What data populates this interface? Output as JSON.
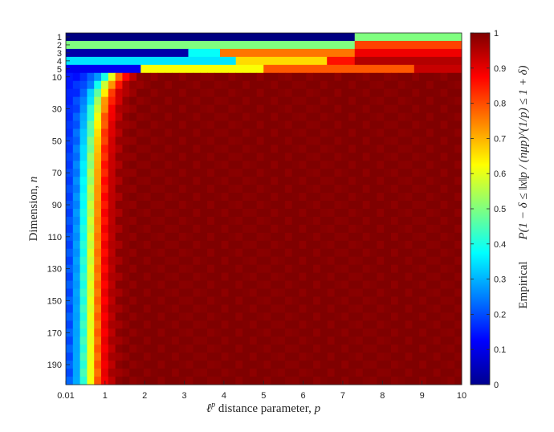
{
  "chart_data": {
    "type": "heatmap",
    "title": "",
    "xlabel_prefix": "ℓ",
    "xlabel_sup": "p",
    "xlabel_rest": " distance parameter, ",
    "xlabel_var": "p",
    "ylabel_text": "Dimension, ",
    "ylabel_var": "n",
    "x_ticks": [
      {
        "label": "0.01",
        "value": 0.01
      },
      {
        "label": "1",
        "value": 1
      },
      {
        "label": "2",
        "value": 2
      },
      {
        "label": "3",
        "value": 3
      },
      {
        "label": "4",
        "value": 4
      },
      {
        "label": "5",
        "value": 5
      },
      {
        "label": "6",
        "value": 6
      },
      {
        "label": "7",
        "value": 7
      },
      {
        "label": "8",
        "value": 8
      },
      {
        "label": "9",
        "value": 9
      },
      {
        "label": "10",
        "value": 10
      }
    ],
    "y_ticks": [
      {
        "label": "1",
        "row": 0
      },
      {
        "label": "2",
        "row": 1
      },
      {
        "label": "3",
        "row": 2
      },
      {
        "label": "4",
        "row": 3
      },
      {
        "label": "5",
        "row": 4
      },
      {
        "label": "10",
        "row": 5
      },
      {
        "label": "30",
        "row": 9
      },
      {
        "label": "50",
        "row": 13
      },
      {
        "label": "70",
        "row": 17
      },
      {
        "label": "90",
        "row": 21
      },
      {
        "label": "110",
        "row": 25
      },
      {
        "label": "130",
        "row": 29
      },
      {
        "label": "150",
        "row": 33
      },
      {
        "label": "170",
        "row": 37
      },
      {
        "label": "190",
        "row": 41
      }
    ],
    "x_range": [
      0.01,
      10
    ],
    "row_count": 44,
    "column_count": 56,
    "clim": [
      0,
      1
    ],
    "colormap": "jet",
    "colorbar": {
      "ticks": [
        "0",
        "0.1",
        "0.2",
        "0.3",
        "0.4",
        "0.5",
        "0.6",
        "0.7",
        "0.8",
        "0.9",
        "1"
      ],
      "label_prefix": "Empirical ",
      "label_formula": "P(1 − δ ≤ ‖x‖p / (nμp)^(1/p) ≤ 1 + δ)"
    },
    "rows_description": "Rows 1-5 are n = 1..5, remaining rows n = 10..200 in steps of 5",
    "low_n_rows": [
      {
        "n": 1,
        "segments": [
          {
            "p_from": 0.01,
            "p_to": 7.3,
            "value": 0.0
          },
          {
            "p_from": 7.3,
            "p_to": 10,
            "value": 0.5
          }
        ]
      },
      {
        "n": 2,
        "segments": [
          {
            "p_from": 0.01,
            "p_to": 7.3,
            "value": 0.5
          },
          {
            "p_from": 7.3,
            "p_to": 10,
            "value": 0.81
          }
        ]
      },
      {
        "n": 3,
        "segments": [
          {
            "p_from": 0.01,
            "p_to": 3.1,
            "value": 0.04
          },
          {
            "p_from": 3.1,
            "p_to": 3.9,
            "value": 0.38
          },
          {
            "p_from": 3.9,
            "p_to": 7.3,
            "value": 0.76
          },
          {
            "p_from": 7.3,
            "p_to": 10,
            "value": 0.89
          }
        ]
      },
      {
        "n": 4,
        "segments": [
          {
            "p_from": 0.01,
            "p_to": 4.3,
            "value": 0.35
          },
          {
            "p_from": 4.3,
            "p_to": 6.6,
            "value": 0.66
          },
          {
            "p_from": 6.6,
            "p_to": 7.3,
            "value": 0.86
          },
          {
            "p_from": 7.3,
            "p_to": 10,
            "value": 0.95
          }
        ]
      },
      {
        "n": 5,
        "segments": [
          {
            "p_from": 0.01,
            "p_to": 1.9,
            "value": 0.11
          },
          {
            "p_from": 1.9,
            "p_to": 5.0,
            "value": 0.62
          },
          {
            "p_from": 5.0,
            "p_to": 8.8,
            "value": 0.79
          },
          {
            "p_from": 8.8,
            "p_to": 10,
            "value": 0.93
          }
        ]
      }
    ],
    "transition_rule": "For n >= 10 the probability rises from ~0.15 to 1 as p increases; the transition threshold p* ≈ 0.55 + 9/(n+5) (p* ≈ 1.15 at n = 10, ≈ 0.6 at n = 200) with width ≈ 0.45"
  }
}
